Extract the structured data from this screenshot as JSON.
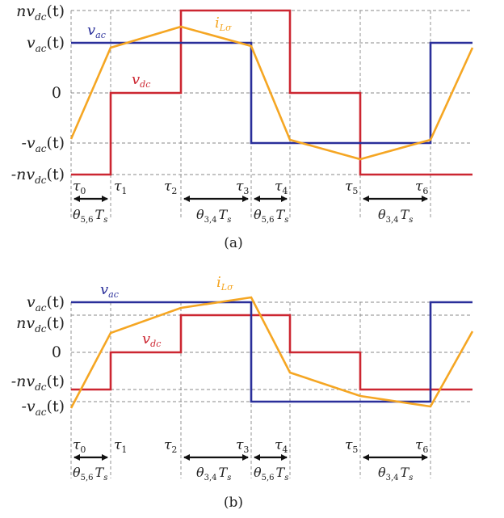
{
  "colors": {
    "vac": "#2a2f9a",
    "vdc": "#cc2631",
    "iL": "#f5a623"
  },
  "panels": [
    {
      "caption": "(a)",
      "y_labels": [
        {
          "base": "nv",
          "sub": "dc",
          "tail": "(t)"
        },
        {
          "base": "v",
          "sub": "ac",
          "tail": "(t)"
        },
        {
          "base": "0",
          "sub": "",
          "tail": ""
        },
        {
          "base": "-v",
          "sub": "ac",
          "tail": "(t)"
        },
        {
          "base": "-nv",
          "sub": "dc",
          "tail": "(t)"
        }
      ],
      "series_labels": {
        "vac": {
          "base": "v",
          "sub": "ac"
        },
        "vdc": {
          "base": "v",
          "sub": "dc"
        },
        "iL": {
          "base": "i",
          "sub": "Lσ"
        }
      },
      "tau_labels": [
        {
          "base": "τ",
          "sub": "0"
        },
        {
          "base": "τ",
          "sub": "1"
        },
        {
          "base": "τ",
          "sub": "2"
        },
        {
          "base": "τ",
          "sub": "3"
        },
        {
          "base": "τ",
          "sub": "4"
        },
        {
          "base": "τ",
          "sub": "5"
        },
        {
          "base": "τ",
          "sub": "6"
        }
      ],
      "interval_labels": [
        {
          "base": "θ",
          "sub": "5,6",
          "tail": "T",
          "tsub": "s"
        },
        {
          "base": "θ",
          "sub": "3,4",
          "tail": "T",
          "tsub": "s"
        },
        {
          "base": "θ",
          "sub": "5,6",
          "tail": "T",
          "tsub": "s"
        },
        {
          "base": "θ",
          "sub": "3,4",
          "tail": "T",
          "tsub": "s"
        }
      ]
    },
    {
      "caption": "(b)",
      "y_labels": [
        {
          "base": "v",
          "sub": "ac",
          "tail": "(t)"
        },
        {
          "base": "nv",
          "sub": "dc",
          "tail": "(t)"
        },
        {
          "base": "0",
          "sub": "",
          "tail": ""
        },
        {
          "base": "-nv",
          "sub": "dc",
          "tail": "(t)"
        },
        {
          "base": "-v",
          "sub": "ac",
          "tail": "(t)"
        }
      ],
      "series_labels": {
        "vac": {
          "base": "v",
          "sub": "ac"
        },
        "vdc": {
          "base": "v",
          "sub": "dc"
        },
        "iL": {
          "base": "i",
          "sub": "Lσ"
        }
      },
      "tau_labels": [
        {
          "base": "τ",
          "sub": "0"
        },
        {
          "base": "τ",
          "sub": "1"
        },
        {
          "base": "τ",
          "sub": "2"
        },
        {
          "base": "τ",
          "sub": "3"
        },
        {
          "base": "τ",
          "sub": "4"
        },
        {
          "base": "τ",
          "sub": "5"
        },
        {
          "base": "τ",
          "sub": "6"
        }
      ],
      "interval_labels": [
        {
          "base": "θ",
          "sub": "5,6",
          "tail": "T",
          "tsub": "s"
        },
        {
          "base": "θ",
          "sub": "3,4",
          "tail": "T",
          "tsub": "s"
        },
        {
          "base": "θ",
          "sub": "5,6",
          "tail": "T",
          "tsub": "s"
        },
        {
          "base": "θ",
          "sub": "3,4",
          "tail": "T",
          "tsub": "s"
        }
      ]
    }
  ]
}
